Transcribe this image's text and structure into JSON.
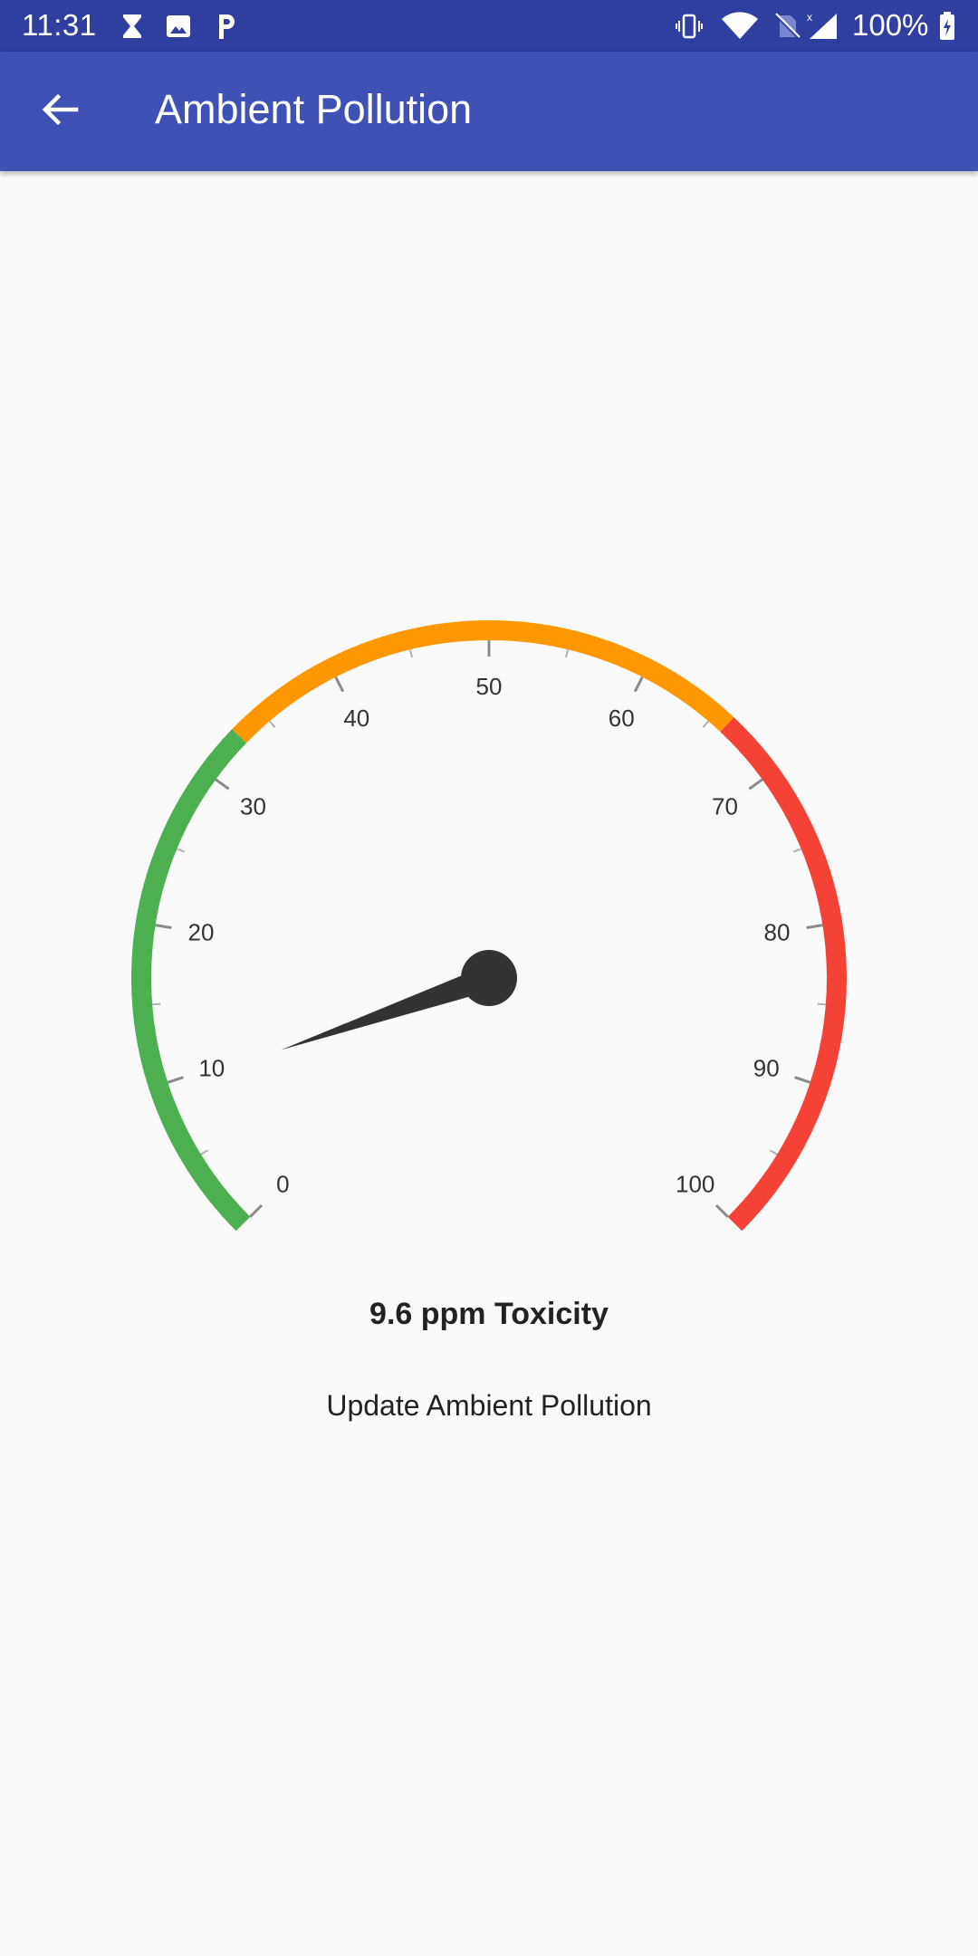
{
  "status_bar": {
    "time": "11:31",
    "battery_percent": "100%",
    "icons": [
      "hourglass-icon",
      "image-icon",
      "parking-icon",
      "vibrate-icon",
      "wifi-icon",
      "no-sim-icon",
      "cell-signal-icon",
      "battery-icon"
    ]
  },
  "app_bar": {
    "back_icon": "arrow-left-icon",
    "title": "Ambient Pollution"
  },
  "gauge": {
    "min": 0,
    "max": 100,
    "value": 9.6,
    "major_ticks": [
      "0",
      "10",
      "20",
      "30",
      "40",
      "50",
      "60",
      "70",
      "80",
      "90",
      "100"
    ],
    "ranges": [
      {
        "from": 0,
        "to": 33,
        "color": "#4caf50"
      },
      {
        "from": 33,
        "to": 66,
        "color": "#ff9800"
      },
      {
        "from": 66,
        "to": 100,
        "color": "#f44336"
      }
    ],
    "needle_color": "#333333",
    "readout": "9.6 ppm Toxicity"
  },
  "actions": {
    "update_label": "Update Ambient Pollution"
  },
  "colors": {
    "status_bar": "#303f9f",
    "app_bar": "#3f51b5",
    "background": "#fafafa"
  }
}
